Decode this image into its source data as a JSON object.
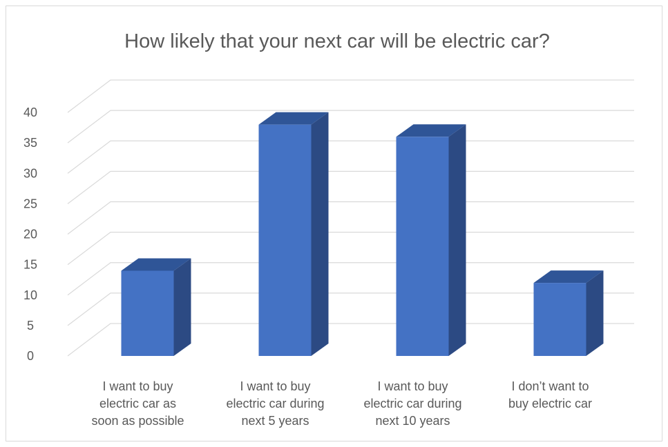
{
  "chart_data": {
    "type": "bar",
    "style": "3d-column",
    "title": "How likely that your next car will be electric car?",
    "categories": [
      [
        "I want to buy",
        "electric car as",
        "soon as possible"
      ],
      [
        "I want to buy",
        "electric car during",
        "next 5 years"
      ],
      [
        "I want to buy",
        "electric car during",
        "next 10 years"
      ],
      [
        "I don’t want to",
        "buy electric car"
      ]
    ],
    "values": [
      14,
      38,
      36,
      12
    ],
    "ylim": [
      0,
      40
    ],
    "yticks": [
      "0",
      "5",
      "10",
      "15",
      "20",
      "25",
      "30",
      "35",
      "40"
    ],
    "grid": true,
    "legend": "none",
    "colors": {
      "front": "#4472c4",
      "side": "#2c4a83",
      "top": "#2f5597",
      "grid": "#d9d9d9",
      "text": "#595959"
    }
  }
}
